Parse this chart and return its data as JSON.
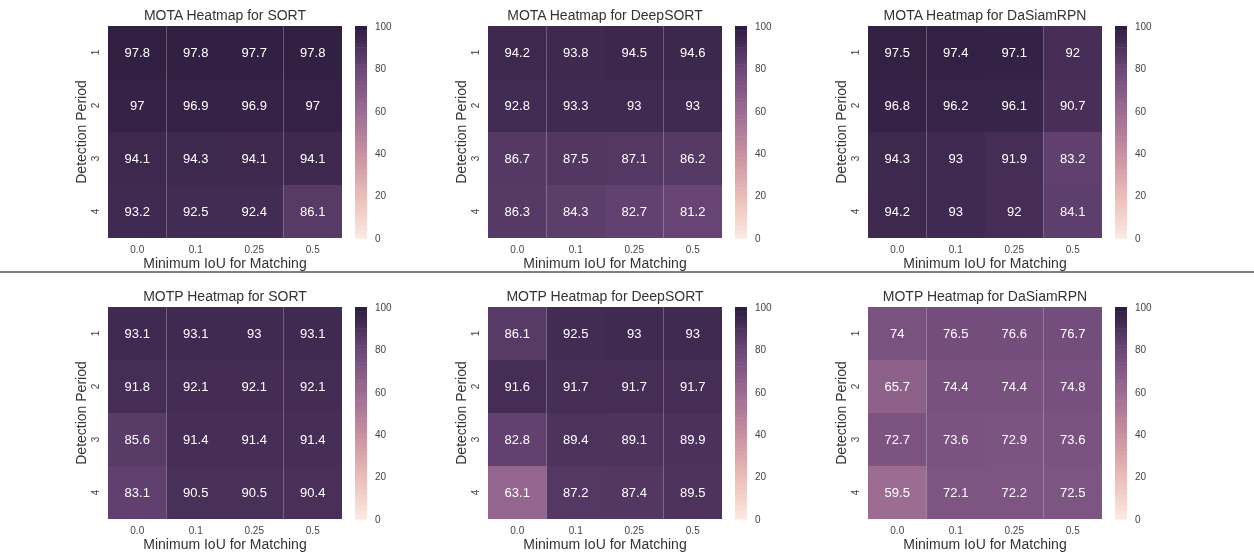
{
  "chart_data": [
    {
      "type": "heatmap",
      "title": "MOTA Heatmap for SORT",
      "xlabel": "Minimum IoU for Matching",
      "ylabel": "Detection Period",
      "categories": [
        "0.0",
        "0.1",
        "0.25",
        "0.5"
      ],
      "y_categories": [
        "1",
        "2",
        "3",
        "4"
      ],
      "cells": [
        [
          97.8,
          97.8,
          97.7,
          97.8
        ],
        [
          97,
          96.9,
          96.9,
          97
        ],
        [
          94.1,
          94.3,
          94.1,
          94.1
        ],
        [
          93.2,
          92.5,
          92.4,
          86.1
        ]
      ],
      "clim": [
        0,
        100
      ],
      "cticks": [
        0,
        20,
        40,
        60,
        80,
        100
      ],
      "data_labels": true
    },
    {
      "type": "heatmap",
      "title": "MOTA Heatmap for DeepSORT",
      "xlabel": "Minimum IoU for Matching",
      "ylabel": "Detection Period",
      "categories": [
        "0.0",
        "0.1",
        "0.25",
        "0.5"
      ],
      "y_categories": [
        "1",
        "2",
        "3",
        "4"
      ],
      "cells": [
        [
          94.2,
          93.8,
          94.5,
          94.6
        ],
        [
          92.8,
          93.3,
          93,
          93
        ],
        [
          86.7,
          87.5,
          87.1,
          86.2
        ],
        [
          86.3,
          84.3,
          82.7,
          81.2
        ]
      ],
      "clim": [
        0,
        100
      ],
      "cticks": [
        0,
        20,
        40,
        60,
        80,
        100
      ],
      "data_labels": true
    },
    {
      "type": "heatmap",
      "title": "MOTA Heatmap for DaSiamRPN",
      "xlabel": "Minimum IoU for Matching",
      "ylabel": "Detection Period",
      "categories": [
        "0.0",
        "0.1",
        "0.25",
        "0.5"
      ],
      "y_categories": [
        "1",
        "2",
        "3",
        "4"
      ],
      "cells": [
        [
          97.5,
          97.4,
          97.1,
          92
        ],
        [
          96.8,
          96.2,
          96.1,
          90.7
        ],
        [
          94.3,
          93,
          91.9,
          83.2
        ],
        [
          94.2,
          93,
          92,
          84.1
        ]
      ],
      "clim": [
        0,
        100
      ],
      "cticks": [
        0,
        20,
        40,
        60,
        80,
        100
      ],
      "data_labels": true
    },
    {
      "type": "heatmap",
      "title": "MOTP Heatmap for SORT",
      "xlabel": "Minimum IoU for Matching",
      "ylabel": "Detection Period",
      "categories": [
        "0.0",
        "0.1",
        "0.25",
        "0.5"
      ],
      "y_categories": [
        "1",
        "2",
        "3",
        "4"
      ],
      "cells": [
        [
          93.1,
          93.1,
          93,
          93.1
        ],
        [
          91.8,
          92.1,
          92.1,
          92.1
        ],
        [
          85.6,
          91.4,
          91.4,
          91.4
        ],
        [
          83.1,
          90.5,
          90.5,
          90.4
        ]
      ],
      "clim": [
        0,
        100
      ],
      "cticks": [
        0,
        20,
        40,
        60,
        80,
        100
      ],
      "data_labels": true
    },
    {
      "type": "heatmap",
      "title": "MOTP Heatmap for DeepSORT",
      "xlabel": "Minimum IoU for Matching",
      "ylabel": "Detection Period",
      "categories": [
        "0.0",
        "0.1",
        "0.25",
        "0.5"
      ],
      "y_categories": [
        "1",
        "2",
        "3",
        "4"
      ],
      "cells": [
        [
          86.1,
          92.5,
          93,
          93
        ],
        [
          91.6,
          91.7,
          91.7,
          91.7
        ],
        [
          82.8,
          89.4,
          89.1,
          89.9
        ],
        [
          63.1,
          87.2,
          87.4,
          89.5
        ]
      ],
      "clim": [
        0,
        100
      ],
      "cticks": [
        0,
        20,
        40,
        60,
        80,
        100
      ],
      "data_labels": true
    },
    {
      "type": "heatmap",
      "title": "MOTP Heatmap for DaSiamRPN",
      "xlabel": "Minimum IoU for Matching",
      "ylabel": "Detection Period",
      "categories": [
        "0.0",
        "0.1",
        "0.25",
        "0.5"
      ],
      "y_categories": [
        "1",
        "2",
        "3",
        "4"
      ],
      "cells": [
        [
          74,
          76.5,
          76.6,
          76.7
        ],
        [
          65.7,
          74.4,
          74.4,
          74.8
        ],
        [
          72.7,
          73.6,
          72.9,
          73.6
        ],
        [
          59.5,
          72.1,
          72.2,
          72.5
        ]
      ],
      "clim": [
        0,
        100
      ],
      "cticks": [
        0,
        20,
        40,
        60,
        80,
        100
      ],
      "data_labels": true
    }
  ]
}
